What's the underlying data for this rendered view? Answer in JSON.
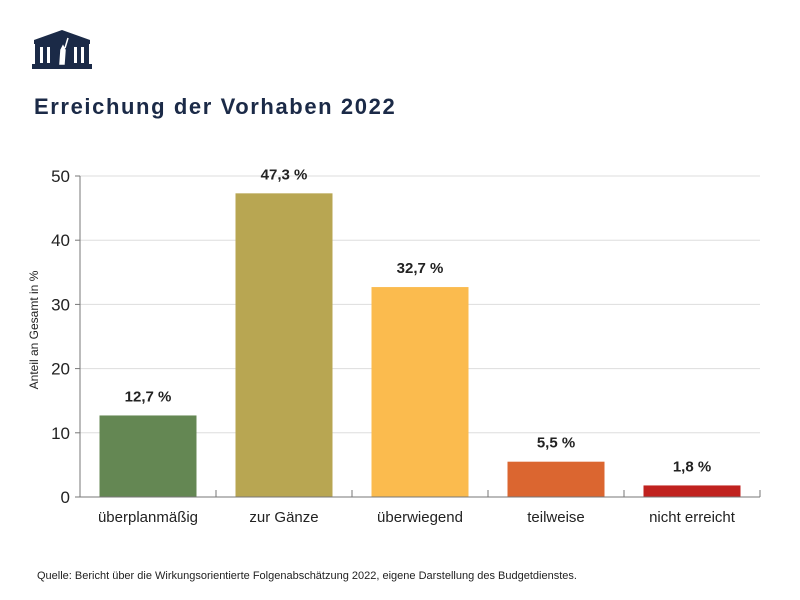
{
  "title": "Erreichung der Vorhaben 2022",
  "source": "Quelle: Bericht über die Wirkungsorientierte Folgenabschätzung 2022, eigene Darstellung des Budgetdienstes.",
  "logo": {
    "icon": "parliament-building-icon",
    "color": "#1b2a47"
  },
  "chart_data": {
    "type": "bar",
    "title": "Erreichung der Vorhaben 2022",
    "ylabel": "Anteil an Gesamt in %",
    "xlabel": "",
    "ylim": [
      0,
      50
    ],
    "yticks": [
      0,
      10,
      20,
      30,
      40,
      50
    ],
    "grid": true,
    "categories": [
      "überplanmäßig",
      "zur Gänze",
      "überwiegend",
      "teilweise",
      "nicht erreicht"
    ],
    "values": [
      12.7,
      47.3,
      32.7,
      5.5,
      1.8
    ],
    "labels": [
      "12,7 %",
      "47,3 %",
      "32,7 %",
      "5,5 %",
      "1,8 %"
    ],
    "colors": [
      "#648753",
      "#b8a652",
      "#fbbb4e",
      "#db6630",
      "#c0221f"
    ]
  }
}
